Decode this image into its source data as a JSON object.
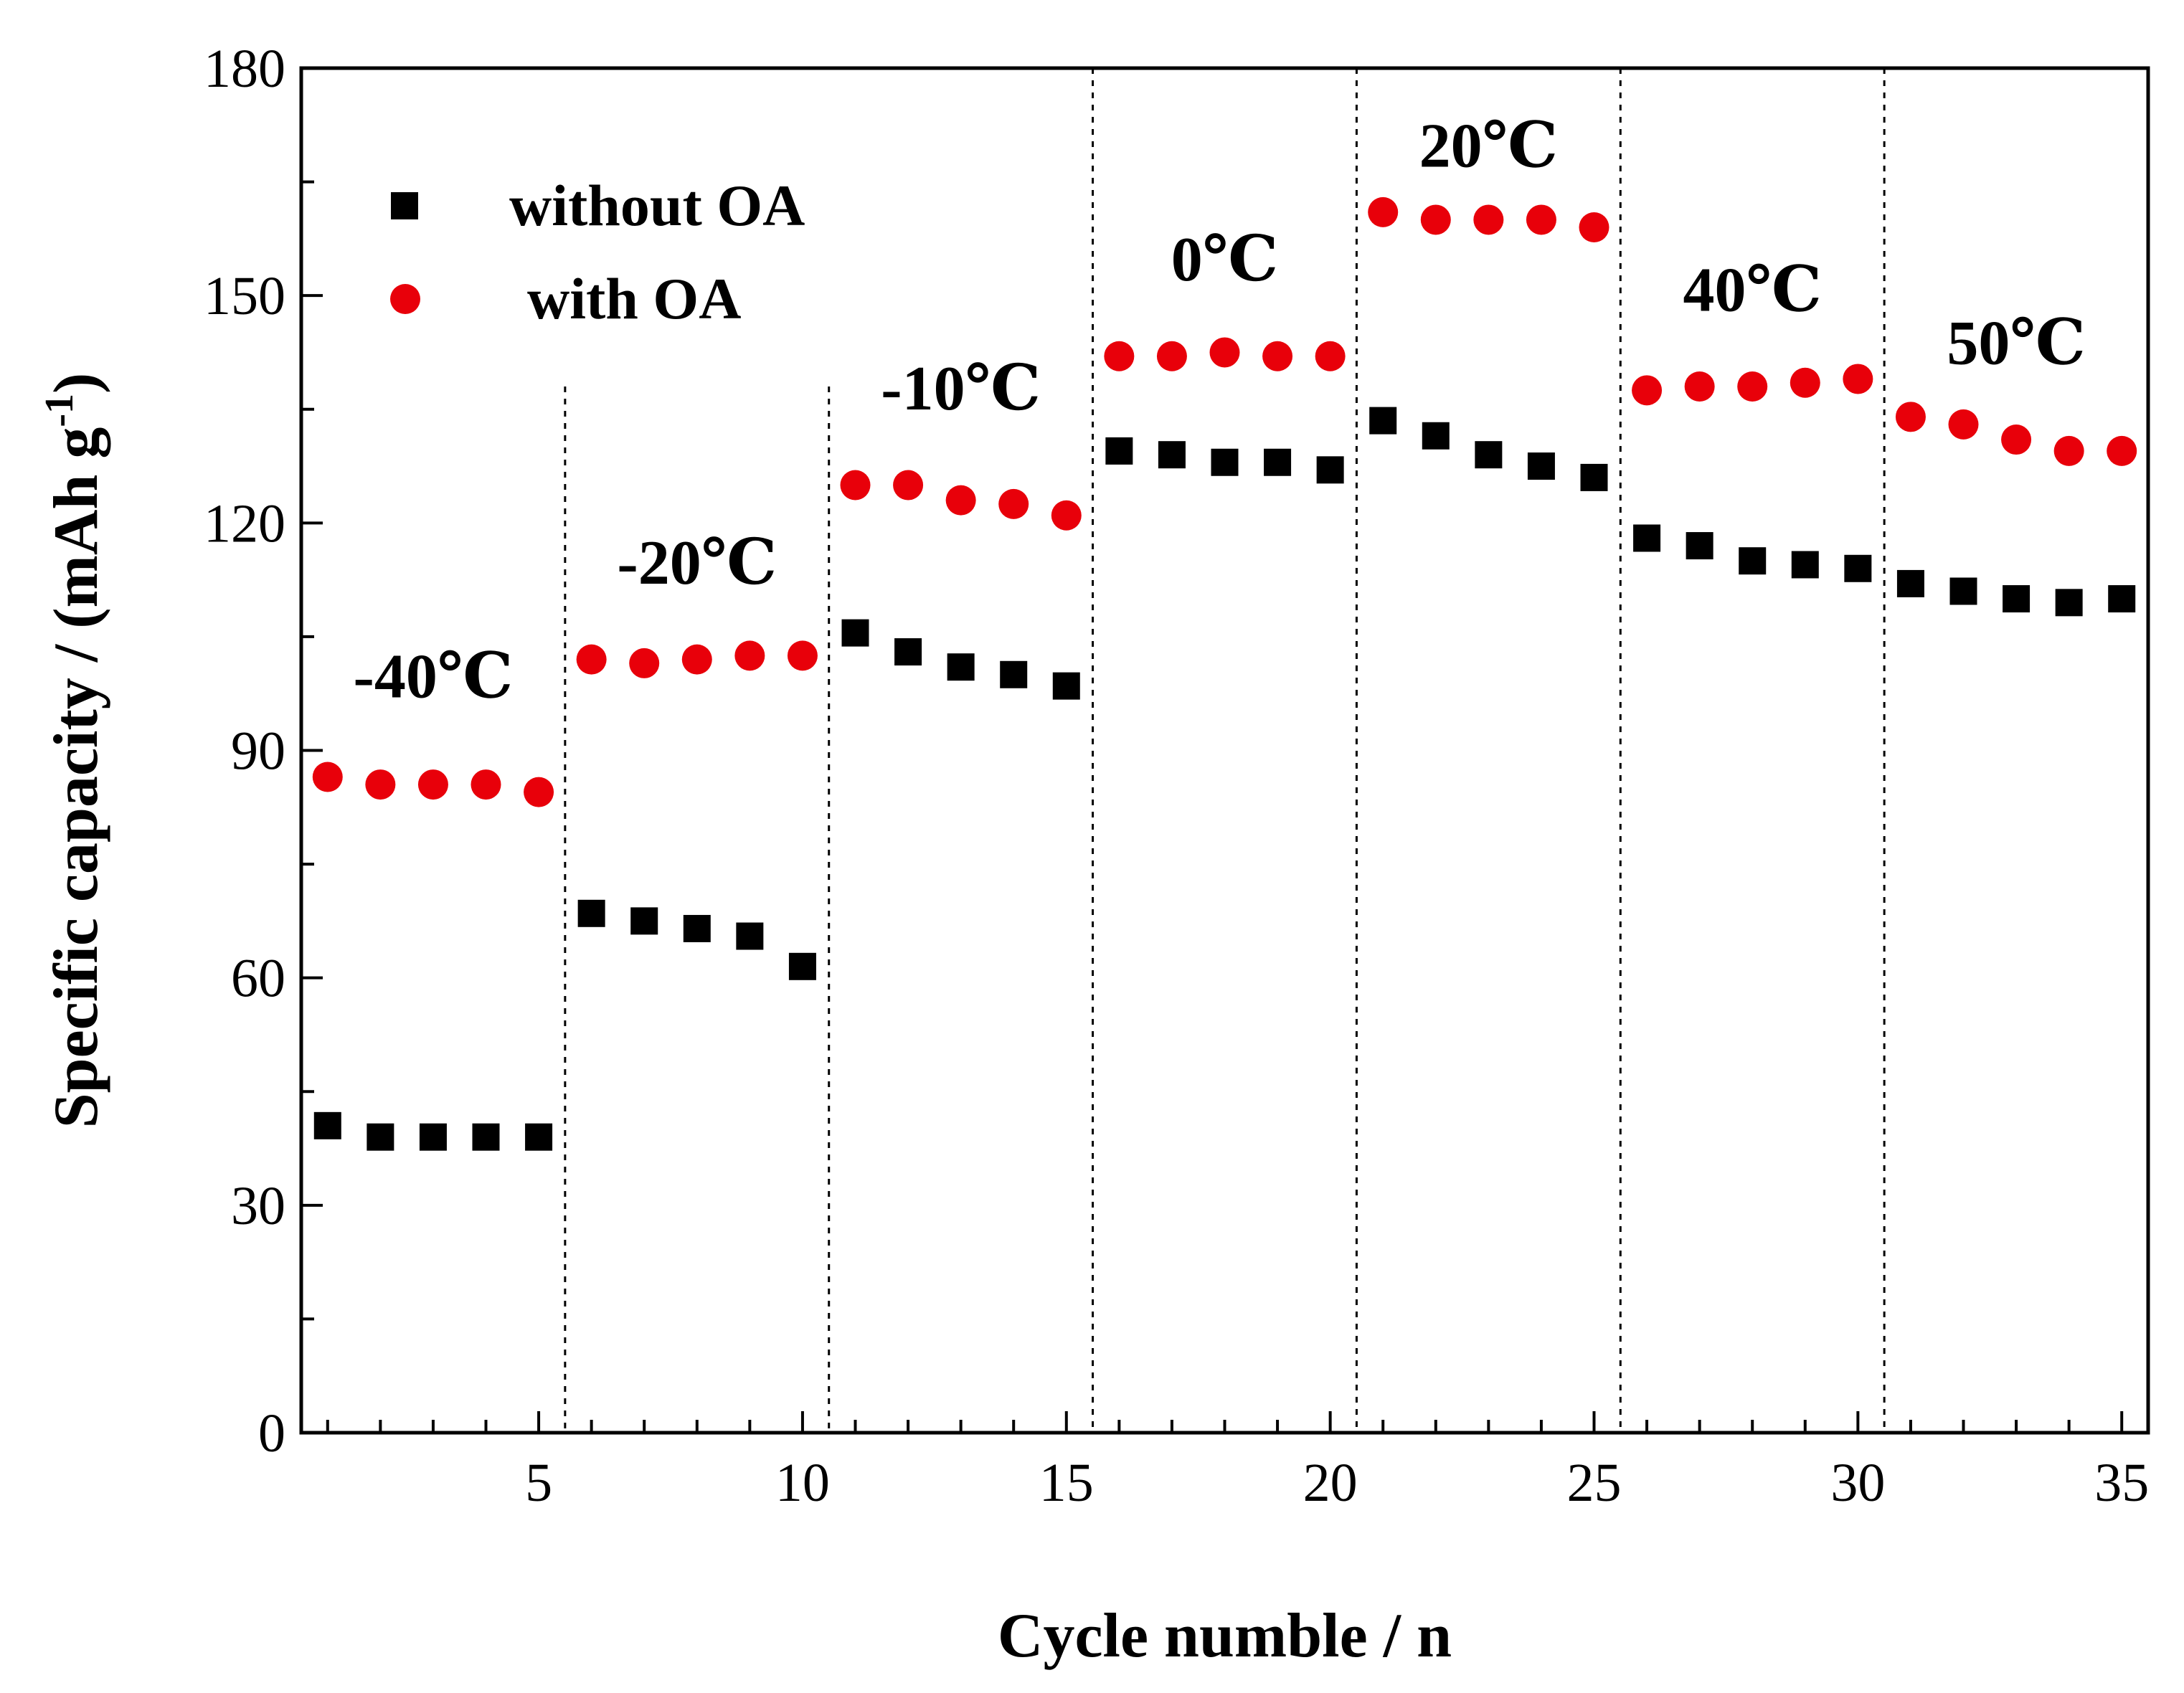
{
  "chart_data": {
    "type": "scatter",
    "title": "",
    "xlabel": "Cycle numble / n",
    "ylabel": "Specific capacity / (mAh g",
    "ylabel_sup": "-1",
    "ylabel_close": ")",
    "xlim": [
      0.5,
      35.5
    ],
    "ylim": [
      0,
      180
    ],
    "x_ticks": [
      5,
      10,
      15,
      20,
      25,
      30,
      35
    ],
    "x_tick_labels": [
      "5",
      "10",
      "15",
      "20",
      "25",
      "30",
      "35"
    ],
    "y_ticks": [
      0,
      30,
      60,
      90,
      120,
      150,
      180
    ],
    "y_tick_labels": [
      "0",
      "30",
      "60",
      "90",
      "120",
      "150",
      "180"
    ],
    "grid": false,
    "legend_position": "top-left",
    "x": [
      1,
      2,
      3,
      4,
      5,
      6,
      7,
      8,
      9,
      10,
      11,
      12,
      13,
      14,
      15,
      16,
      17,
      18,
      19,
      20,
      21,
      22,
      23,
      24,
      25,
      26,
      27,
      28,
      29,
      30,
      31,
      32,
      33,
      34,
      35
    ],
    "series": [
      {
        "name": "without OA",
        "marker": "square",
        "color": "#000000",
        "values": [
          40.5,
          39,
          39,
          39,
          39,
          68.5,
          67.5,
          66.5,
          65.5,
          61.5,
          105.5,
          103,
          101,
          100,
          98.5,
          129.5,
          129,
          128,
          128,
          127,
          133.5,
          131.5,
          129,
          127.5,
          126,
          118,
          117,
          115,
          114.5,
          114,
          112,
          111,
          110,
          109.5,
          110
        ]
      },
      {
        "name": "with OA",
        "marker": "circle",
        "color": "#e8000a",
        "values": [
          86.5,
          85.5,
          85.5,
          85.5,
          84.5,
          102,
          101.5,
          102,
          102.5,
          102.5,
          125,
          125,
          123,
          122.5,
          121,
          142,
          142,
          142.5,
          142,
          142,
          161,
          160,
          160,
          160,
          159,
          137.5,
          138,
          138,
          138.5,
          139,
          134,
          133,
          131,
          129.5,
          129.5
        ]
      }
    ],
    "dividers_x": [
      5.5,
      10.5,
      15.5,
      20.5,
      25.5,
      30.5
    ],
    "regions": [
      {
        "label": "-40℃",
        "x": 3.0,
        "y": 97
      },
      {
        "label": "-20℃",
        "x": 8.0,
        "y": 112
      },
      {
        "label": "-10℃",
        "x": 13.0,
        "y": 135
      },
      {
        "label": "0℃",
        "x": 18.0,
        "y": 152
      },
      {
        "label": "20℃",
        "x": 23.0,
        "y": 167
      },
      {
        "label": "40℃",
        "x": 28.0,
        "y": 148
      },
      {
        "label": "50℃",
        "x": 33.0,
        "y": 141
      }
    ]
  }
}
